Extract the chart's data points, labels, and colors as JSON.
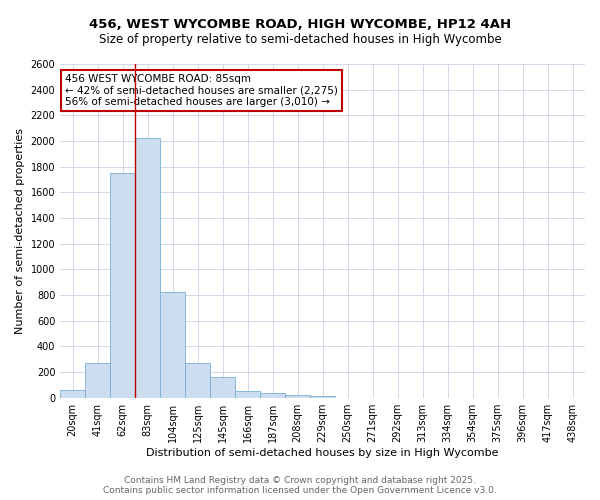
{
  "title": "456, WEST WYCOMBE ROAD, HIGH WYCOMBE, HP12 4AH",
  "subtitle": "Size of property relative to semi-detached houses in High Wycombe",
  "xlabel": "Distribution of semi-detached houses by size in High Wycombe",
  "ylabel": "Number of semi-detached properties",
  "categories": [
    "20sqm",
    "41sqm",
    "62sqm",
    "83sqm",
    "104sqm",
    "125sqm",
    "145sqm",
    "166sqm",
    "187sqm",
    "208sqm",
    "229sqm",
    "250sqm",
    "271sqm",
    "292sqm",
    "313sqm",
    "334sqm",
    "354sqm",
    "375sqm",
    "396sqm",
    "417sqm",
    "438sqm"
  ],
  "values": [
    60,
    270,
    1750,
    2020,
    820,
    270,
    160,
    55,
    35,
    20,
    10,
    0,
    0,
    0,
    0,
    0,
    0,
    0,
    0,
    0,
    0
  ],
  "bar_color": "#ccddf0",
  "bar_edge_color": "#7aafd4",
  "vline_x": 2.5,
  "vline_color": "#c00000",
  "annotation_text": "456 WEST WYCOMBE ROAD: 85sqm\n← 42% of semi-detached houses are smaller (2,275)\n56% of semi-detached houses are larger (3,010) →",
  "annotation_box_color": "#ffffff",
  "annotation_box_edge": "#c00000",
  "ylim": [
    0,
    2600
  ],
  "yticks": [
    0,
    200,
    400,
    600,
    800,
    1000,
    1200,
    1400,
    1600,
    1800,
    2000,
    2200,
    2400,
    2600
  ],
  "background_color": "#ffffff",
  "grid_color": "#d0d8e8",
  "footer_line1": "Contains HM Land Registry data © Crown copyright and database right 2025.",
  "footer_line2": "Contains public sector information licensed under the Open Government Licence v3.0.",
  "title_fontsize": 9.5,
  "subtitle_fontsize": 8.5,
  "xlabel_fontsize": 8,
  "ylabel_fontsize": 8,
  "tick_fontsize": 7,
  "annotation_fontsize": 7.5,
  "footer_fontsize": 6.5
}
